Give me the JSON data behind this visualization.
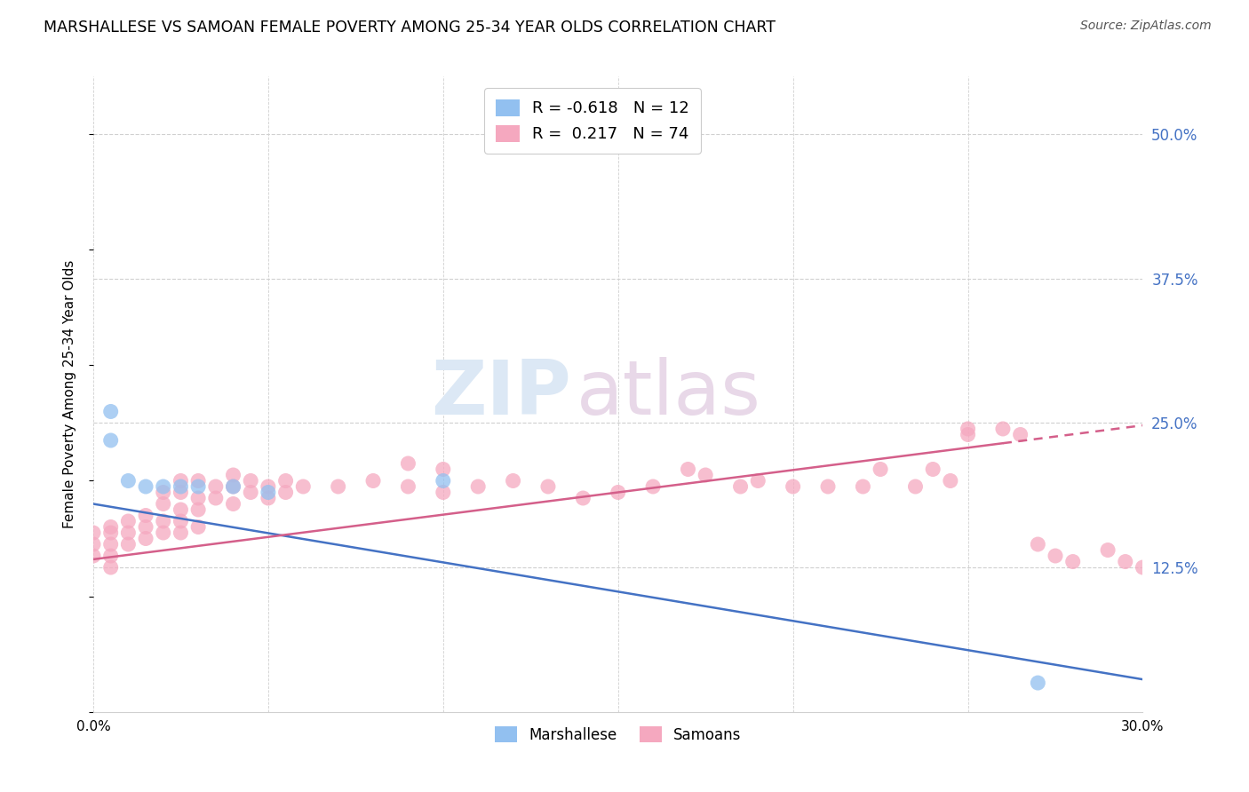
{
  "title": "MARSHALLESE VS SAMOAN FEMALE POVERTY AMONG 25-34 YEAR OLDS CORRELATION CHART",
  "source": "Source: ZipAtlas.com",
  "ylabel": "Female Poverty Among 25-34 Year Olds",
  "xlim": [
    0.0,
    0.3
  ],
  "ylim": [
    0.0,
    0.55
  ],
  "xticks": [
    0.0,
    0.05,
    0.1,
    0.15,
    0.2,
    0.25,
    0.3
  ],
  "yticks_right": [
    0.0,
    0.125,
    0.25,
    0.375,
    0.5
  ],
  "ytick_labels_right": [
    "",
    "12.5%",
    "25.0%",
    "37.5%",
    "50.0%"
  ],
  "marshallese_R": -0.618,
  "marshallese_N": 12,
  "samoan_R": 0.217,
  "samoan_N": 74,
  "marshallese_color": "#92c0f0",
  "samoan_color": "#f5a8bf",
  "marshallese_line_color": "#4472c4",
  "samoan_line_color": "#d45f8a",
  "grid_color": "#d0d0d0",
  "marshallese_line": [
    [
      0.0,
      0.18
    ],
    [
      0.3,
      0.028
    ]
  ],
  "samoan_line": [
    [
      0.0,
      0.132
    ],
    [
      0.3,
      0.248
    ]
  ],
  "samoan_line_dashed_start": 0.26,
  "marshallese_points_x": [
    0.005,
    0.005,
    0.01,
    0.015,
    0.02,
    0.025,
    0.03,
    0.04,
    0.05,
    0.1,
    0.27
  ],
  "marshallese_points_y": [
    0.26,
    0.235,
    0.2,
    0.195,
    0.195,
    0.195,
    0.195,
    0.195,
    0.19,
    0.2,
    0.025
  ],
  "samoan_points_x": [
    0.0,
    0.0,
    0.0,
    0.005,
    0.005,
    0.005,
    0.005,
    0.005,
    0.01,
    0.01,
    0.01,
    0.015,
    0.015,
    0.015,
    0.02,
    0.02,
    0.02,
    0.02,
    0.025,
    0.025,
    0.025,
    0.025,
    0.025,
    0.03,
    0.03,
    0.03,
    0.03,
    0.035,
    0.035,
    0.04,
    0.04,
    0.04,
    0.045,
    0.045,
    0.05,
    0.05,
    0.055,
    0.055,
    0.06,
    0.07,
    0.08,
    0.09,
    0.09,
    0.1,
    0.1,
    0.11,
    0.12,
    0.13,
    0.14,
    0.15,
    0.16,
    0.17,
    0.175,
    0.185,
    0.19,
    0.2,
    0.21,
    0.22,
    0.225,
    0.235,
    0.24,
    0.245,
    0.25,
    0.26,
    0.265,
    0.27,
    0.275,
    0.28,
    0.29,
    0.295,
    0.3,
    0.25
  ],
  "samoan_points_y": [
    0.155,
    0.145,
    0.135,
    0.16,
    0.155,
    0.145,
    0.135,
    0.125,
    0.165,
    0.155,
    0.145,
    0.17,
    0.16,
    0.15,
    0.19,
    0.18,
    0.165,
    0.155,
    0.2,
    0.19,
    0.175,
    0.165,
    0.155,
    0.2,
    0.185,
    0.175,
    0.16,
    0.195,
    0.185,
    0.205,
    0.195,
    0.18,
    0.2,
    0.19,
    0.195,
    0.185,
    0.2,
    0.19,
    0.195,
    0.195,
    0.2,
    0.215,
    0.195,
    0.21,
    0.19,
    0.195,
    0.2,
    0.195,
    0.185,
    0.19,
    0.195,
    0.21,
    0.205,
    0.195,
    0.2,
    0.195,
    0.195,
    0.195,
    0.21,
    0.195,
    0.21,
    0.2,
    0.24,
    0.245,
    0.24,
    0.145,
    0.135,
    0.13,
    0.14,
    0.13,
    0.125,
    0.245
  ]
}
